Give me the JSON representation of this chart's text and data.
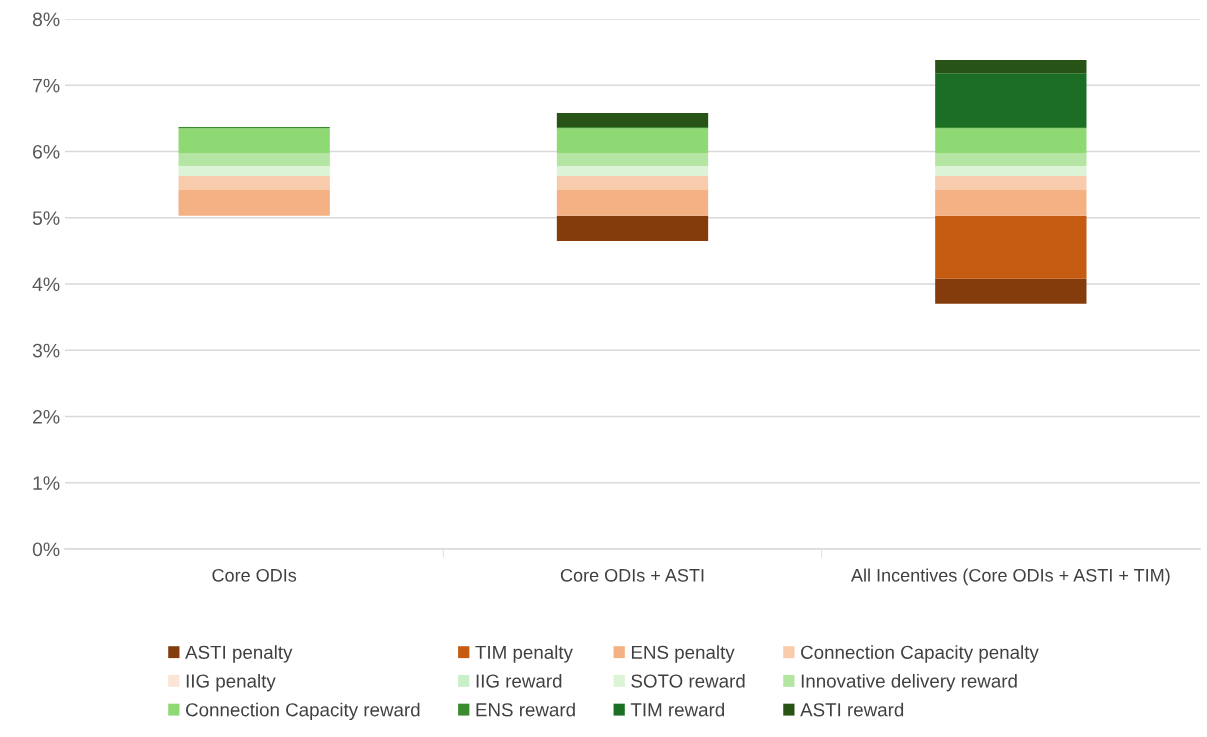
{
  "chart_data": {
    "type": "bar",
    "categories": [
      "Core ODIs",
      "Core ODIs + ASTI",
      "All Incentives (Core ODIs + ASTI + TIM)"
    ],
    "series": [
      {
        "name": "ASTI penalty",
        "color": "#843c0c",
        "base": [
          null,
          4.65,
          3.7
        ],
        "values": [
          null,
          0.38,
          0.38
        ]
      },
      {
        "name": "TIM penalty",
        "color": "#c55a11",
        "base": [
          null,
          null,
          4.08
        ],
        "values": [
          null,
          null,
          0.95
        ]
      },
      {
        "name": "ENS penalty",
        "color": "#f4b183",
        "base": [
          5.03,
          5.03,
          5.03
        ],
        "values": [
          0.39,
          0.39,
          0.39
        ]
      },
      {
        "name": "Connection Capacity penalty",
        "color": "#f8cbad",
        "base": [
          5.42,
          5.42,
          5.42
        ],
        "values": [
          0.21,
          0.21,
          0.21
        ]
      },
      {
        "name": "IIG penalty",
        "color": "#fbe5d6",
        "base": [
          null,
          null,
          null
        ],
        "values": [
          null,
          null,
          null
        ]
      },
      {
        "name": "IIG reward",
        "color": "#c9f0c9",
        "base": [
          null,
          null,
          null
        ],
        "values": [
          null,
          null,
          null
        ]
      },
      {
        "name": "SOTO reward",
        "color": "#dcf3d5",
        "base": [
          5.63,
          5.63,
          5.63
        ],
        "values": [
          0.15,
          0.15,
          0.15
        ]
      },
      {
        "name": "Innovative delivery reward",
        "color": "#b4e5a2",
        "base": [
          5.78,
          5.78,
          5.78
        ],
        "values": [
          0.19,
          0.19,
          0.19
        ]
      },
      {
        "name": "Connection Capacity reward",
        "color": "#8fd974",
        "base": [
          5.97,
          5.97,
          5.97
        ],
        "values": [
          0.38,
          0.38,
          0.38
        ]
      },
      {
        "name": "ENS reward",
        "color": "#3a8a2e",
        "base": [
          6.35,
          6.35,
          6.35
        ],
        "values": [
          0.02,
          0.02,
          0.02
        ]
      },
      {
        "name": "TIM reward",
        "color": "#1b6e24",
        "base": [
          null,
          null,
          6.37
        ],
        "values": [
          null,
          null,
          0.81
        ]
      },
      {
        "name": "ASTI reward",
        "color": "#275317",
        "base": [
          null,
          6.37,
          7.18
        ],
        "values": [
          null,
          0.21,
          0.2
        ]
      }
    ],
    "ylim": [
      0,
      8
    ],
    "yticks": [
      {
        "value": 0,
        "label": "0%"
      },
      {
        "value": 1,
        "label": "1%"
      },
      {
        "value": 2,
        "label": "2%"
      },
      {
        "value": 3,
        "label": "3%"
      },
      {
        "value": 4,
        "label": "4%"
      },
      {
        "value": 5,
        "label": "5%"
      },
      {
        "value": 6,
        "label": "6%"
      },
      {
        "value": 7,
        "label": "7%"
      },
      {
        "value": 8,
        "label": "8%"
      }
    ],
    "grid": "y",
    "legend": "bottom"
  }
}
